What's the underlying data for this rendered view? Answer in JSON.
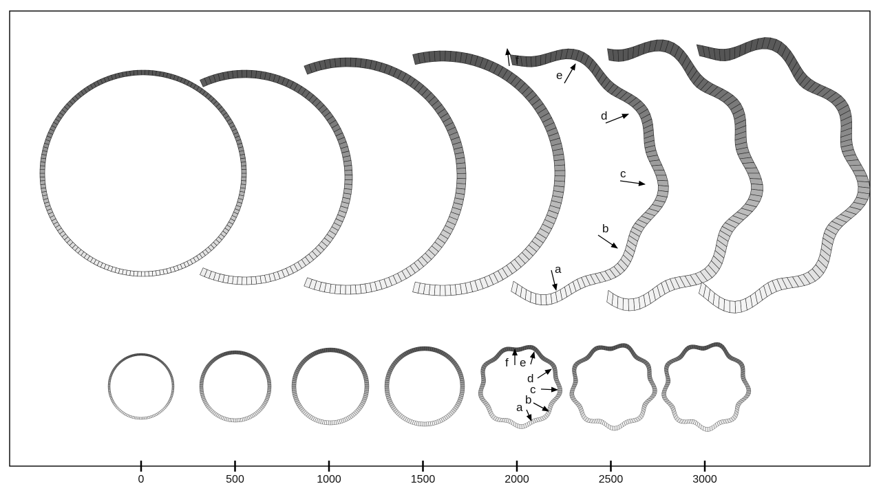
{
  "axis": {
    "ticks": [
      {
        "value": 0,
        "label": "0"
      },
      {
        "value": 500,
        "label": "500"
      },
      {
        "value": 1000,
        "label": "1000"
      },
      {
        "value": 1500,
        "label": "1500"
      },
      {
        "value": 2000,
        "label": "2000"
      },
      {
        "value": 2500,
        "label": "2500"
      },
      {
        "value": 3000,
        "label": "3000"
      }
    ]
  },
  "shapes": [
    {
      "step": 0,
      "waviness": 0.0
    },
    {
      "step": 500,
      "waviness": 0.0
    },
    {
      "step": 1000,
      "waviness": 0.0
    },
    {
      "step": 1500,
      "waviness": 0.0
    },
    {
      "step": 2000,
      "waviness": 0.75
    },
    {
      "step": 2500,
      "waviness": 0.9
    },
    {
      "step": 3000,
      "waviness": 1.0
    }
  ],
  "annotations": {
    "labels": [
      "a",
      "b",
      "c",
      "d",
      "e",
      "f"
    ],
    "attached_to_step": 2000
  },
  "colors": {
    "ring_top": "#555555",
    "ring_bottom": "#f4f4f4",
    "segment_line": "#222222",
    "frame": "#000000"
  }
}
